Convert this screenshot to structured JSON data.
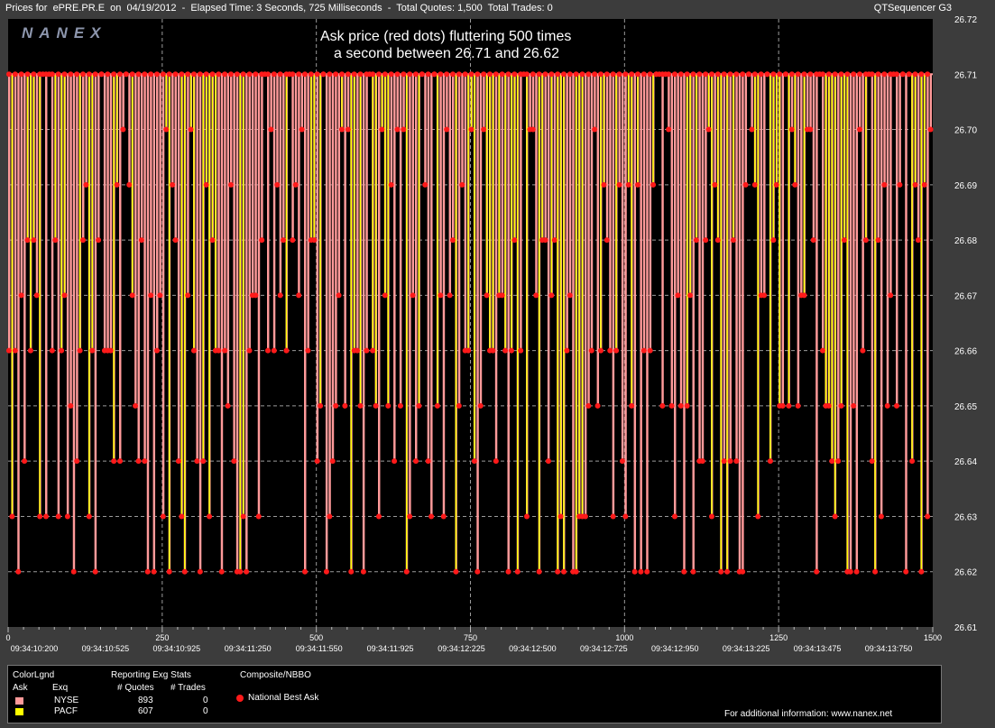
{
  "header": {
    "title": "Prices for  ePRE.PR.E  on  04/19/2012  -  Elapsed Time: 3 Seconds, 725 Milliseconds  -  Total Quotes: 1,500  Total Trades: 0",
    "app_name": "QTSequencer G3"
  },
  "watermark": "NANEX",
  "annotation": {
    "line1": "Ask price (red dots) fluttering 500 times",
    "line2": "a second between 26.71 and 26.62"
  },
  "colors": {
    "background": "#000000",
    "frame": "#3c3c3c",
    "nyse_ask": "#ff9a9a",
    "pacf_ask": "#ffff00",
    "nbbo_dot": "#ff1a1a",
    "grid": "#9a9a9a"
  },
  "chart_data": {
    "type": "line",
    "y_ticks": [
      "26.72",
      "26.71",
      "26.70",
      "26.69",
      "26.68",
      "26.67",
      "26.66",
      "26.65",
      "26.64",
      "26.63",
      "26.62",
      "26.61"
    ],
    "ylim": [
      26.61,
      26.72
    ],
    "x_index_ticks": [
      "0",
      "250",
      "500",
      "750",
      "1000",
      "1250",
      "1500"
    ],
    "xlim": [
      0,
      1500
    ],
    "x_time_ticks": [
      "09:34:10:200",
      "09:34:10:525",
      "09:34:10:925",
      "09:34:11:250",
      "09:34:11:550",
      "09:34:11:925",
      "09:34:12:225",
      "09:34:12:500",
      "09:34:12:725",
      "09:34:12:950",
      "09:34:13:225",
      "09:34:13:475",
      "09:34:13:750"
    ],
    "grid": true,
    "series": [
      {
        "name": "NYSE",
        "role": "Ask",
        "color": "#ff9a9a",
        "range": [
          26.62,
          26.71
        ]
      },
      {
        "name": "PACF",
        "role": "Ask",
        "color": "#ffff00",
        "range": [
          26.62,
          26.71
        ]
      },
      {
        "name": "National Best Ask",
        "role": "Composite/NBBO",
        "color": "#ff1a1a",
        "range": [
          26.62,
          26.71
        ]
      }
    ]
  },
  "legend": {
    "color_legend": "ColorLgnd",
    "col_ask": "Ask",
    "col_exq": "Exq",
    "reporting_header": "Reporting Exg Stats",
    "col_quotes": "# Quotes",
    "col_trades": "# Trades",
    "composite_header": "Composite/NBBO",
    "rows": [
      {
        "exchange": "NYSE",
        "quotes": "893",
        "trades": "0",
        "color": "#ff9a9a"
      },
      {
        "exchange": "PACF",
        "quotes": "607",
        "trades": "0",
        "color": "#ffff00"
      }
    ],
    "nbbo_label": "National Best Ask",
    "info": "For additional information: www.nanex.net"
  }
}
